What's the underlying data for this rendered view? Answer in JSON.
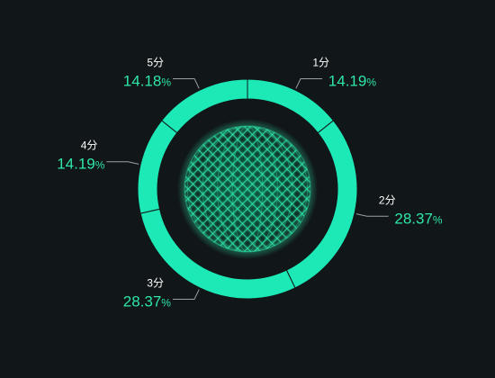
{
  "chart_data": {
    "type": "pie",
    "variant": "donut",
    "title": "",
    "categories": [
      "1分",
      "2分",
      "3分",
      "4分",
      "5分"
    ],
    "values": [
      14.19,
      28.37,
      28.37,
      14.19,
      14.18
    ],
    "value_labels": [
      "14.19",
      "28.37",
      "28.37",
      "14.19",
      "14.18"
    ],
    "unit": "%",
    "start_angle_deg": 0,
    "direction": "clockwise",
    "legend": "none",
    "center_decoration": "glowing-wireframe-sphere-icon"
  },
  "colors": {
    "background": "#111619",
    "ring": "#1de9b6",
    "separator": "#111619",
    "label_name": "#ffffff",
    "label_value": "#2ee6a8",
    "leader_line": "#9aa0a6",
    "sphere_glow": "#2ee6a8"
  }
}
